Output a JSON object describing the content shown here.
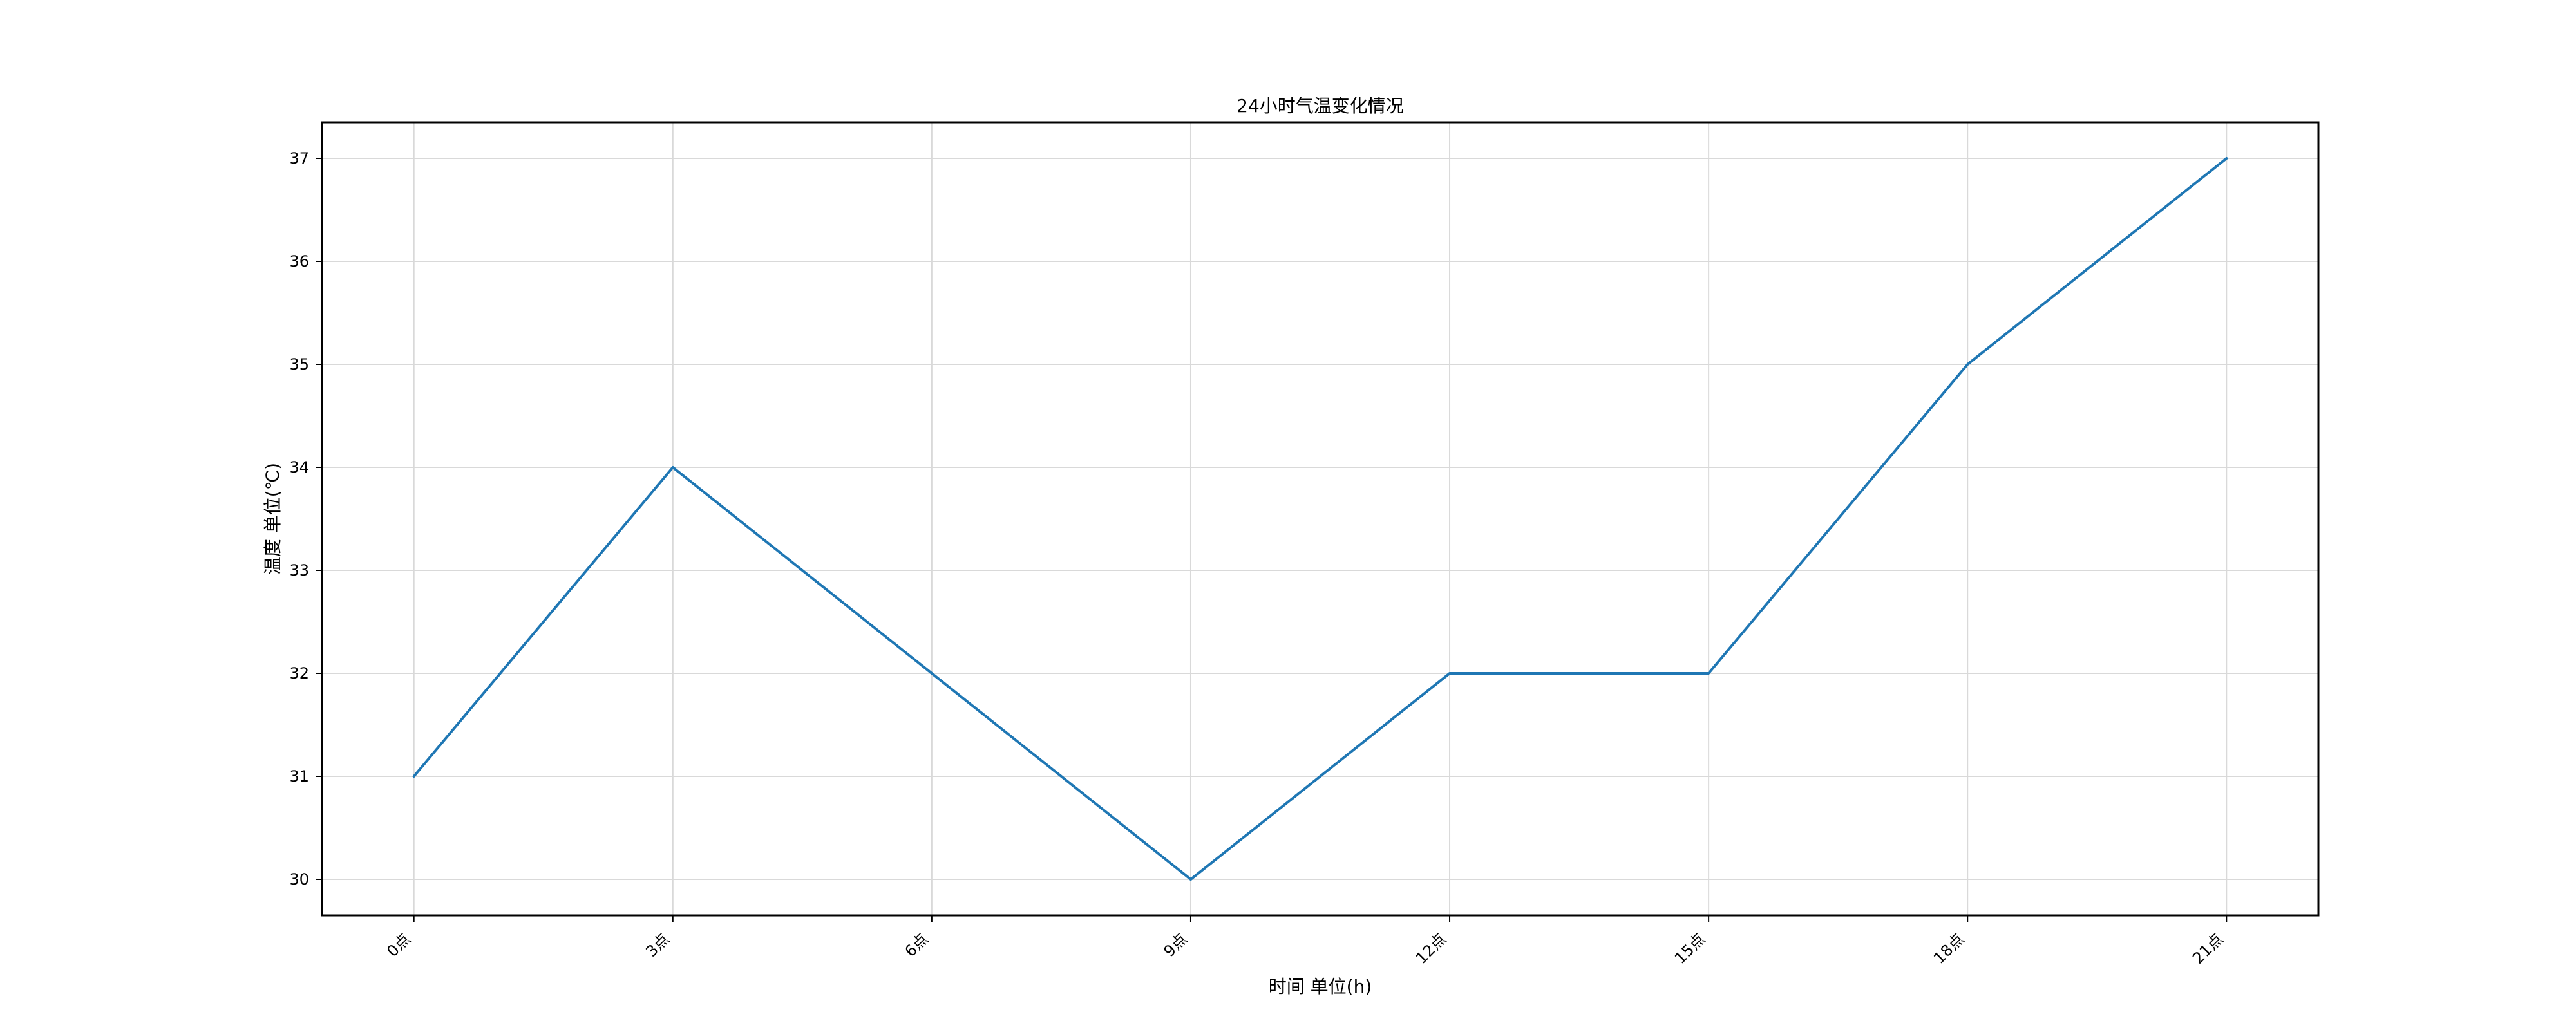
{
  "chart_data": {
    "type": "line",
    "title": "24小时气温变化情况",
    "xlabel": "时间 单位(h)",
    "ylabel": "温度 单位(℃)",
    "categories": [
      "0点",
      "3点",
      "6点",
      "9点",
      "12点",
      "15点",
      "18点",
      "21点"
    ],
    "yticks": [
      "30",
      "31",
      "32",
      "33",
      "34",
      "35",
      "36",
      "37"
    ],
    "ylim": [
      29.65,
      37.35
    ],
    "grid": true,
    "series": [
      {
        "values": [
          31,
          34,
          32,
          30,
          32,
          32,
          35,
          37
        ],
        "color": "#1f77b4"
      }
    ]
  }
}
